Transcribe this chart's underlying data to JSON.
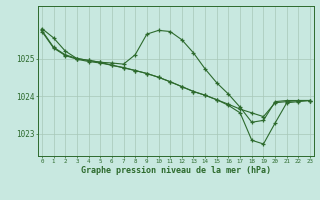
{
  "line1": {
    "x": [
      0,
      1,
      2,
      3,
      4,
      5,
      6,
      7,
      8,
      9,
      10,
      11,
      12,
      13,
      14,
      15,
      16,
      17,
      18,
      19,
      20,
      21,
      22,
      23
    ],
    "y": [
      1025.8,
      1025.55,
      1025.2,
      1025.0,
      1024.95,
      1024.9,
      1024.88,
      1024.85,
      1025.1,
      1025.65,
      1025.75,
      1025.72,
      1025.5,
      1025.15,
      1024.72,
      1024.35,
      1024.05,
      1023.7,
      1023.3,
      1023.35,
      1023.85,
      1023.88,
      1023.88,
      1023.88
    ]
  },
  "line2": {
    "x": [
      0,
      1,
      2,
      3,
      4,
      5,
      6,
      7,
      8,
      9,
      10,
      11,
      12,
      13,
      14,
      15,
      16,
      17,
      18,
      19,
      20,
      21,
      22,
      23
    ],
    "y": [
      1025.75,
      1025.3,
      1025.1,
      1025.0,
      1024.95,
      1024.9,
      1024.82,
      1024.76,
      1024.68,
      1024.6,
      1024.5,
      1024.38,
      1024.25,
      1024.12,
      1024.02,
      1023.9,
      1023.78,
      1023.65,
      1023.55,
      1023.45,
      1023.82,
      1023.85,
      1023.88,
      1023.88
    ]
  },
  "line3": {
    "x": [
      0,
      1,
      2,
      3,
      4,
      5,
      6,
      7,
      8,
      9,
      10,
      11,
      12,
      13,
      14,
      15,
      16,
      17,
      18,
      19,
      20,
      21,
      22,
      23
    ],
    "y": [
      1025.72,
      1025.28,
      1025.08,
      1024.98,
      1024.92,
      1024.88,
      1024.82,
      1024.75,
      1024.68,
      1024.6,
      1024.5,
      1024.38,
      1024.25,
      1024.12,
      1024.02,
      1023.9,
      1023.75,
      1023.55,
      1022.82,
      1022.72,
      1023.28,
      1023.82,
      1023.85,
      1023.88
    ]
  },
  "color": "#2d6a2d",
  "bg_color": "#c8e8e0",
  "grid_color": "#a8c8b8",
  "xlabel": "Graphe pression niveau de la mer (hPa)",
  "yticks": [
    1023,
    1024,
    1025
  ],
  "xticks": [
    0,
    1,
    2,
    3,
    4,
    5,
    6,
    7,
    8,
    9,
    10,
    11,
    12,
    13,
    14,
    15,
    16,
    17,
    18,
    19,
    20,
    21,
    22,
    23
  ],
  "ylim": [
    1022.4,
    1026.4
  ],
  "xlim": [
    -0.3,
    23.3
  ]
}
